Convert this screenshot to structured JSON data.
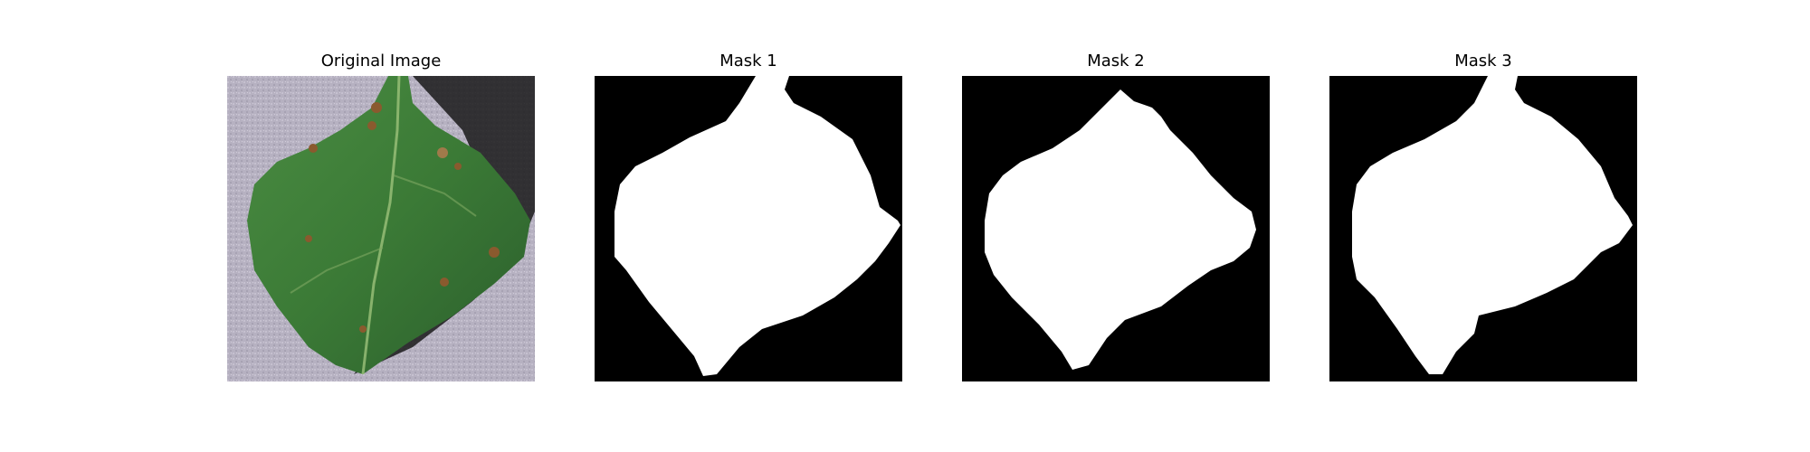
{
  "figure": {
    "panels": [
      {
        "title": "Original Image",
        "kind": "photo",
        "subject": "leaf-photo"
      },
      {
        "title": "Mask 1",
        "kind": "mask"
      },
      {
        "title": "Mask 2",
        "kind": "mask"
      },
      {
        "title": "Mask 3",
        "kind": "mask"
      }
    ]
  },
  "colors": {
    "background": "#ffffff",
    "mask_background": "#000000",
    "mask_foreground": "#ffffff",
    "photo_background": "#b7b2c2",
    "leaf_green": "#3f7f3a",
    "leaf_dark": "#24502a",
    "leaf_spot": "#8a5a2e",
    "shadow": "#111111"
  }
}
